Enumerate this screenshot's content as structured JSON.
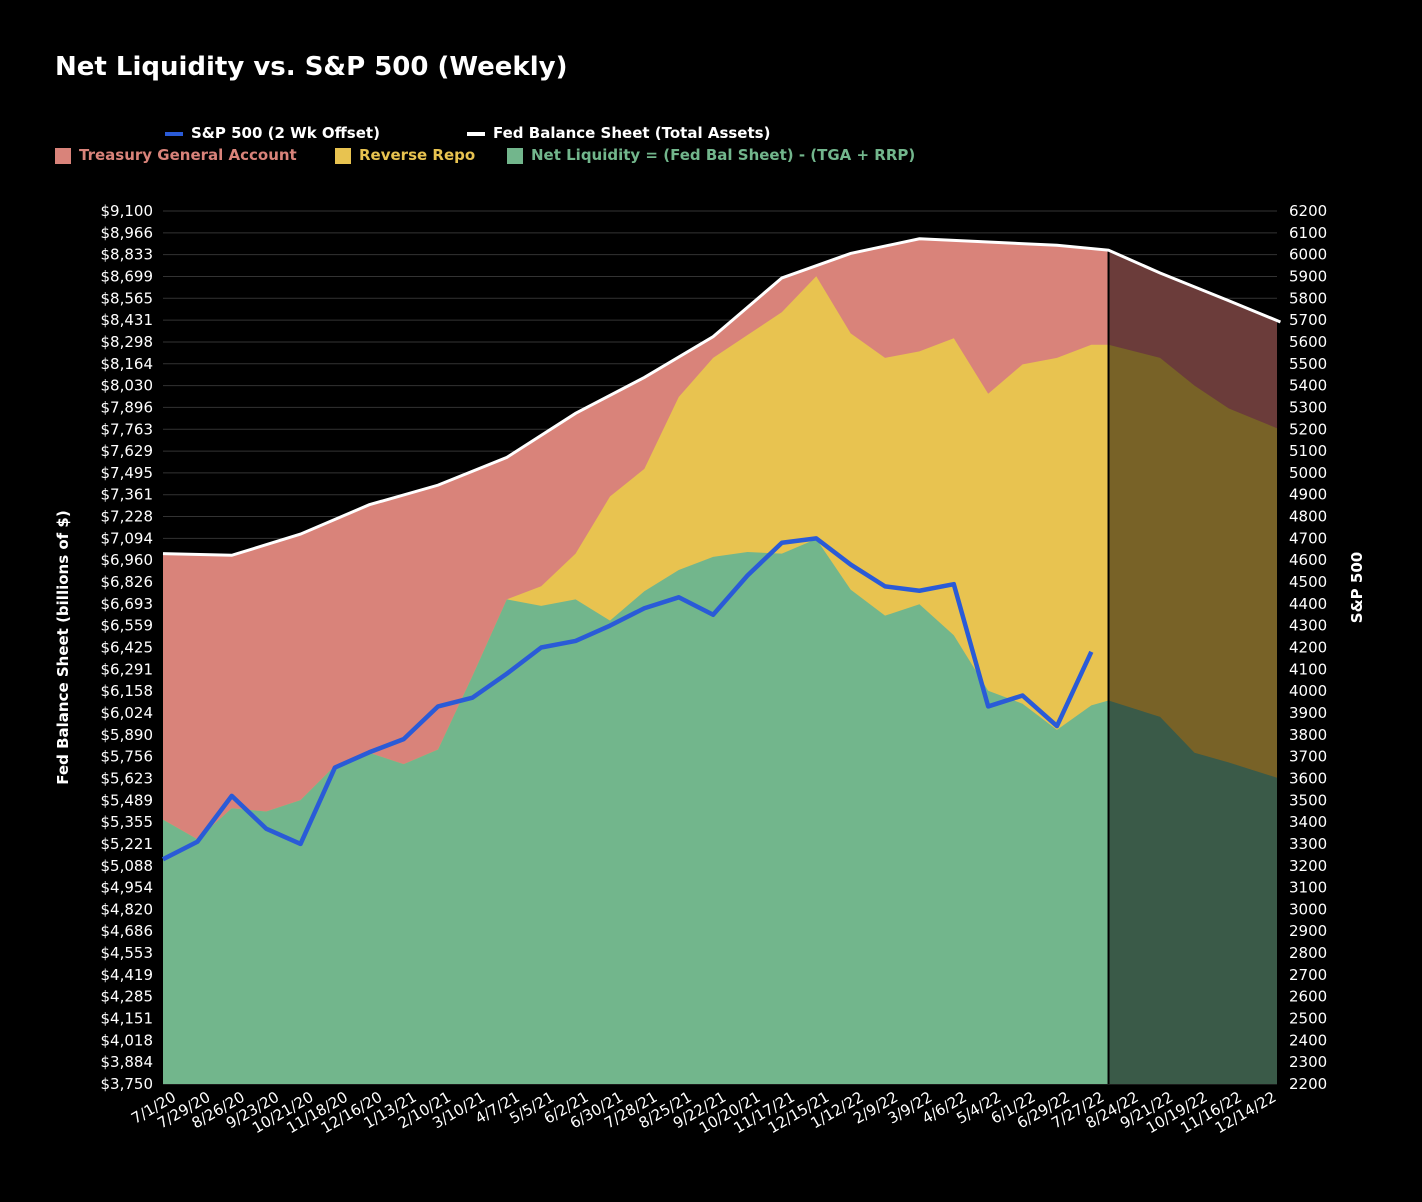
{
  "title": "Net Liquidity vs. S&P 500 (Weekly)",
  "legend": {
    "spx": "S&P 500 (2 Wk Offset)",
    "fed": "Fed Balance Sheet (Total Assets)",
    "tga": "Treasury General Account",
    "rrp": "Reverse Repo",
    "net": "Net Liquidity = (Fed Bal Sheet) - (TGA + RRP)"
  },
  "colors": {
    "spx": "#2a5bd7",
    "fed": "#ffffff",
    "tga": "#d9837a",
    "rrp": "#e8c350",
    "net": "#72b68c",
    "tga_proj": "#6b3c3a",
    "rrp_proj": "#786227",
    "net_proj": "#3a5a48",
    "grid": "#333333"
  },
  "chart_data": {
    "type": "area",
    "xlabel": "",
    "ylabel": "Fed Balance Sheet (billions of $)",
    "y2label": "S&P 500",
    "ylim": [
      3750,
      9100
    ],
    "y2lim": [
      2200,
      6200
    ],
    "y_ticks": [
      "$9,100",
      "$8,966",
      "$8,833",
      "$8,699",
      "$8,565",
      "$8,431",
      "$8,298",
      "$8,164",
      "$8,030",
      "$7,896",
      "$7,763",
      "$7,629",
      "$7,495",
      "$7,361",
      "$7,228",
      "$7,094",
      "$6,960",
      "$6,826",
      "$6,693",
      "$6,559",
      "$6,425",
      "$6,291",
      "$6,158",
      "$6,024",
      "$5,890",
      "$5,756",
      "$5,623",
      "$5,489",
      "$5,355",
      "$5,221",
      "$5,088",
      "$4,954",
      "$4,820",
      "$4,686",
      "$4,553",
      "$4,419",
      "$4,285",
      "$4,151",
      "$4,018",
      "$3,884",
      "$3,750"
    ],
    "y2_ticks": [
      "6200",
      "6100",
      "6000",
      "5900",
      "5800",
      "5700",
      "5600",
      "5500",
      "5400",
      "5300",
      "5200",
      "5100",
      "5000",
      "4900",
      "4800",
      "4700",
      "4600",
      "4500",
      "4400",
      "4300",
      "4200",
      "4100",
      "4000",
      "3900",
      "3800",
      "3700",
      "3600",
      "3500",
      "3400",
      "3300",
      "3200",
      "3100",
      "3000",
      "2900",
      "2800",
      "2700",
      "2600",
      "2500",
      "2400",
      "2300",
      "2200"
    ],
    "x_ticks": [
      "7/1/20",
      "7/29/20",
      "8/26/20",
      "9/23/20",
      "10/21/20",
      "11/18/20",
      "12/16/20",
      "1/13/21",
      "2/10/21",
      "3/10/21",
      "4/7/21",
      "5/5/21",
      "6/2/21",
      "6/30/21",
      "7/28/21",
      "8/25/21",
      "9/22/21",
      "10/20/21",
      "11/17/21",
      "12/15/21",
      "1/12/22",
      "2/9/22",
      "3/9/22",
      "4/6/22",
      "5/4/22",
      "6/1/22",
      "6/29/22",
      "7/27/22",
      "8/24/22",
      "9/21/22",
      "10/19/22",
      "11/16/22",
      "12/14/22"
    ],
    "series": [
      {
        "name": "Fed Balance Sheet (Total Assets)",
        "kind": "line",
        "axis": "left",
        "x": [
          "7/1/20",
          "8/26/20",
          "10/21/20",
          "12/16/20",
          "2/10/21",
          "4/7/21",
          "6/2/21",
          "7/28/21",
          "9/22/21",
          "11/17/21",
          "1/12/22",
          "3/9/22",
          "5/4/22",
          "6/29/22",
          "8/10/22",
          "9/21/22",
          "11/16/22",
          "12/28/22"
        ],
        "values": [
          7000,
          6990,
          7120,
          7300,
          7420,
          7590,
          7860,
          8080,
          8330,
          8690,
          8840,
          8930,
          8910,
          8890,
          8860,
          8720,
          8550,
          8420
        ]
      },
      {
        "name": "Net Liquidity = (Fed Bal Sheet) - (TGA + RRP)",
        "kind": "area",
        "axis": "left",
        "x": [
          "7/1/20",
          "7/29/20",
          "8/26/20",
          "9/23/20",
          "10/21/20",
          "11/18/20",
          "12/16/20",
          "1/13/21",
          "2/10/21",
          "3/10/21",
          "4/7/21",
          "5/5/21",
          "6/2/21",
          "6/30/21",
          "7/28/21",
          "8/25/21",
          "9/22/21",
          "10/20/21",
          "11/17/21",
          "12/15/21",
          "1/12/22",
          "2/9/22",
          "3/9/22",
          "4/6/22",
          "5/4/22",
          "6/1/22",
          "6/29/22",
          "7/27/22",
          "8/10/22",
          "9/21/22",
          "10/19/22",
          "11/16/22",
          "12/28/22"
        ],
        "values": [
          5370,
          5250,
          5440,
          5420,
          5490,
          5700,
          5780,
          5710,
          5800,
          6250,
          6720,
          6680,
          6720,
          6590,
          6770,
          6900,
          6980,
          7010,
          7000,
          7090,
          6780,
          6620,
          6690,
          6500,
          6160,
          6080,
          5920,
          6070,
          6100,
          6000,
          5780,
          5720,
          5620
        ]
      },
      {
        "name": "Reverse Repo",
        "kind": "area",
        "axis": "left",
        "x": [
          "7/1/20",
          "7/29/20",
          "8/26/20",
          "9/23/20",
          "10/21/20",
          "11/18/20",
          "12/16/20",
          "1/13/21",
          "2/10/21",
          "3/10/21",
          "4/7/21",
          "5/5/21",
          "6/2/21",
          "6/30/21",
          "7/28/21",
          "8/25/21",
          "9/22/21",
          "10/20/21",
          "11/17/21",
          "12/15/21",
          "1/12/22",
          "2/9/22",
          "3/9/22",
          "4/6/22",
          "5/4/22",
          "6/1/22",
          "6/29/22",
          "7/27/22",
          "8/10/22",
          "9/21/22",
          "10/19/22",
          "11/16/22",
          "12/28/22"
        ],
        "values": [
          5370,
          5250,
          5440,
          5420,
          5490,
          5700,
          5780,
          5710,
          5800,
          6250,
          6720,
          6800,
          7000,
          7350,
          7520,
          7960,
          8200,
          8340,
          8480,
          8700,
          8350,
          8200,
          8240,
          8320,
          7980,
          8160,
          8200,
          8280,
          8280,
          8200,
          8030,
          7890,
          7760
        ]
      },
      {
        "name": "Treasury General Account",
        "kind": "area",
        "axis": "left",
        "x": [
          "7/1/20",
          "8/26/20",
          "10/21/20",
          "12/16/20",
          "2/10/21",
          "4/7/21",
          "6/2/21",
          "7/28/21",
          "9/22/21",
          "11/17/21",
          "1/12/22",
          "3/9/22",
          "5/4/22",
          "6/29/22",
          "8/10/22",
          "9/21/22",
          "11/16/22",
          "12/28/22"
        ],
        "values": [
          7000,
          6990,
          7120,
          7300,
          7420,
          7590,
          7860,
          8080,
          8330,
          8690,
          8840,
          8930,
          8910,
          8890,
          8860,
          8720,
          8550,
          8420
        ]
      },
      {
        "name": "S&P 500 (2 Wk Offset)",
        "kind": "line",
        "axis": "right",
        "x": [
          "7/1/20",
          "7/29/20",
          "8/26/20",
          "9/23/20",
          "10/21/20",
          "11/18/20",
          "12/16/20",
          "1/13/21",
          "2/10/21",
          "3/10/21",
          "4/7/21",
          "5/5/21",
          "6/2/21",
          "6/30/21",
          "7/28/21",
          "8/25/21",
          "9/22/21",
          "10/20/21",
          "11/17/21",
          "12/15/21",
          "1/12/22",
          "2/9/22",
          "3/9/22",
          "4/6/22",
          "5/4/22",
          "6/1/22",
          "6/29/22",
          "7/27/22"
        ],
        "values": [
          3230,
          3310,
          3520,
          3370,
          3300,
          3650,
          3720,
          3780,
          3930,
          3970,
          4080,
          4200,
          4230,
          4300,
          4380,
          4430,
          4350,
          4530,
          4680,
          4700,
          4580,
          4480,
          4460,
          4490,
          3930,
          3980,
          3840,
          4180
        ]
      }
    ]
  }
}
